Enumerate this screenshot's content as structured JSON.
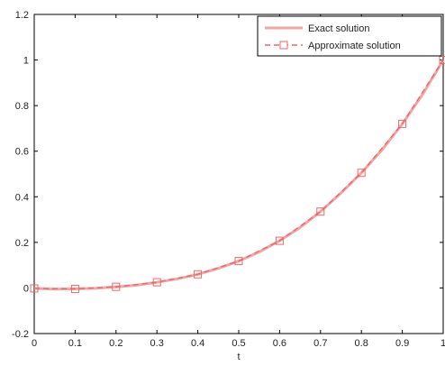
{
  "chart_data": {
    "type": "line",
    "title": "",
    "xlabel": "t",
    "ylabel": "",
    "xlim": [
      0,
      1
    ],
    "ylim": [
      -0.2,
      1.2
    ],
    "x_ticks": [
      0,
      0.1,
      0.2,
      0.3,
      0.4,
      0.5,
      0.6,
      0.7,
      0.8,
      0.9,
      1
    ],
    "x_tick_labels": [
      "0",
      "0.1",
      "0.2",
      "0.3",
      "0.4",
      "0.5",
      "0.6",
      "0.7",
      "0.8",
      "0.9",
      "1"
    ],
    "y_ticks": [
      -0.2,
      0,
      0.2,
      0.4,
      0.6,
      0.8,
      1,
      1.2
    ],
    "y_tick_labels": [
      "-0.2",
      "0",
      "0.2",
      "0.4",
      "0.6",
      "0.8",
      "1",
      "1.2"
    ],
    "grid": false,
    "legend_position": "top-right",
    "series": [
      {
        "name": "Exact solution",
        "style": "solid",
        "color": "#f5a3a3",
        "x": [
          0,
          0.05,
          0.1,
          0.15,
          0.2,
          0.25,
          0.3,
          0.35,
          0.4,
          0.45,
          0.5,
          0.55,
          0.6,
          0.65,
          0.7,
          0.75,
          0.8,
          0.85,
          0.9,
          0.95,
          1
        ],
        "y": [
          -0.002,
          -0.005,
          -0.004,
          -0.001,
          0.005,
          0.012,
          0.025,
          0.04,
          0.06,
          0.086,
          0.118,
          0.158,
          0.207,
          0.265,
          0.335,
          0.416,
          0.505,
          0.605,
          0.72,
          0.85,
          1.0
        ]
      },
      {
        "name": "Approximate solution",
        "style": "dashed",
        "marker": "square",
        "color": "#e86a6a",
        "x": [
          0,
          0.1,
          0.2,
          0.3,
          0.4,
          0.5,
          0.6,
          0.7,
          0.8,
          0.9,
          1
        ],
        "y": [
          -0.002,
          -0.004,
          0.005,
          0.025,
          0.06,
          0.118,
          0.207,
          0.335,
          0.505,
          0.72,
          1.0
        ]
      }
    ]
  }
}
